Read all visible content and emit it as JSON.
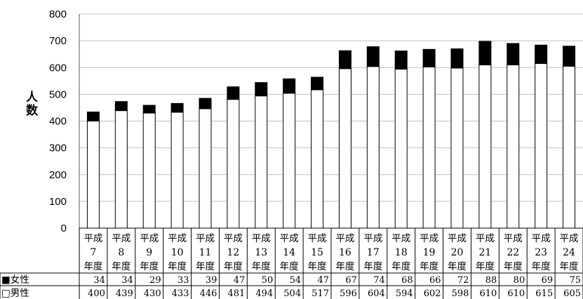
{
  "chart_data": {
    "type": "bar",
    "stacked": true,
    "ylabel": "人数",
    "ylim": [
      0,
      800
    ],
    "yticks": [
      0,
      100,
      200,
      300,
      400,
      500,
      600,
      700,
      800
    ],
    "grid": true,
    "categories": [
      {
        "era": "平成",
        "num": "7",
        "suffix": "年度"
      },
      {
        "era": "平成",
        "num": "8",
        "suffix": "年度"
      },
      {
        "era": "平成",
        "num": "9",
        "suffix": "年度"
      },
      {
        "era": "平成",
        "num": "10",
        "suffix": "年度"
      },
      {
        "era": "平成",
        "num": "11",
        "suffix": "年度"
      },
      {
        "era": "平成",
        "num": "12",
        "suffix": "年度"
      },
      {
        "era": "平成",
        "num": "13",
        "suffix": "年度"
      },
      {
        "era": "平成",
        "num": "14",
        "suffix": "年度"
      },
      {
        "era": "平成",
        "num": "15",
        "suffix": "年度"
      },
      {
        "era": "平成",
        "num": "16",
        "suffix": "年度"
      },
      {
        "era": "平成",
        "num": "17",
        "suffix": "年度"
      },
      {
        "era": "平成",
        "num": "18",
        "suffix": "年度"
      },
      {
        "era": "平成",
        "num": "19",
        "suffix": "年度"
      },
      {
        "era": "平成",
        "num": "20",
        "suffix": "年度"
      },
      {
        "era": "平成",
        "num": "21",
        "suffix": "年度"
      },
      {
        "era": "平成",
        "num": "22",
        "suffix": "年度"
      },
      {
        "era": "平成",
        "num": "23",
        "suffix": "年度"
      },
      {
        "era": "平成",
        "num": "24",
        "suffix": "年度"
      }
    ],
    "series": [
      {
        "name": "■女性",
        "color": "#000000",
        "values": [
          34,
          34,
          29,
          33,
          39,
          47,
          50,
          54,
          47,
          67,
          74,
          68,
          66,
          72,
          88,
          80,
          69,
          75
        ]
      },
      {
        "name": "□男性",
        "color": "#ffffff",
        "values": [
          400,
          439,
          430,
          433,
          446,
          481,
          494,
          504,
          517,
          596,
          604,
          594,
          602,
          598,
          610,
          610,
          615,
          605
        ]
      }
    ]
  }
}
